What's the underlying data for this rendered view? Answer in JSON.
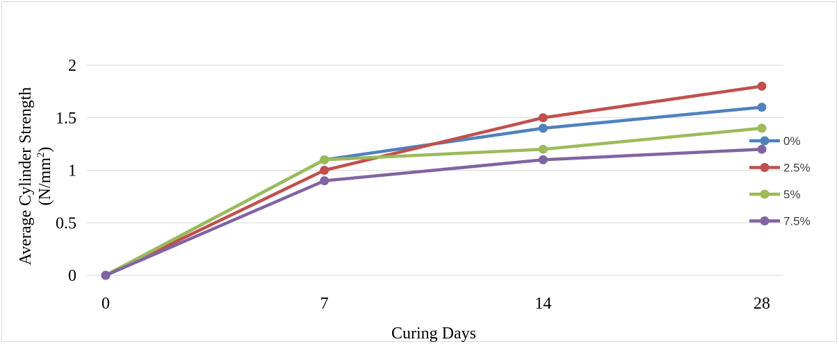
{
  "chart_data": {
    "type": "line",
    "x": [
      0,
      7,
      14,
      28
    ],
    "categories": [
      "0",
      "7",
      "14",
      "28"
    ],
    "xlabel": "Curing Days",
    "ylabel": "Average Cylinder Strength (N/mm²)",
    "ylabel_line1": "Average Cylinder Strength",
    "ylabel_line2_pre": "(N/mm",
    "ylabel_line2_sup": "2",
    "ylabel_line2_post": ")",
    "ylim": [
      0,
      2
    ],
    "yticks": [
      "0",
      "0.5",
      "1",
      "1.5",
      "2"
    ],
    "ytick_values": [
      0,
      0.5,
      1,
      1.5,
      2
    ],
    "grid": true,
    "legend_position": "right",
    "series": [
      {
        "name": "0%",
        "color": "#4f81bd",
        "values": [
          0,
          1.1,
          1.4,
          1.6
        ]
      },
      {
        "name": "2.5%",
        "color": "#c0504d",
        "values": [
          0,
          1.0,
          1.5,
          1.8
        ]
      },
      {
        "name": "5%",
        "color": "#9bbb59",
        "values": [
          0,
          1.1,
          1.2,
          1.4
        ]
      },
      {
        "name": "7.5%",
        "color": "#8064a2",
        "values": [
          0,
          0.9,
          1.1,
          1.2
        ]
      }
    ]
  }
}
